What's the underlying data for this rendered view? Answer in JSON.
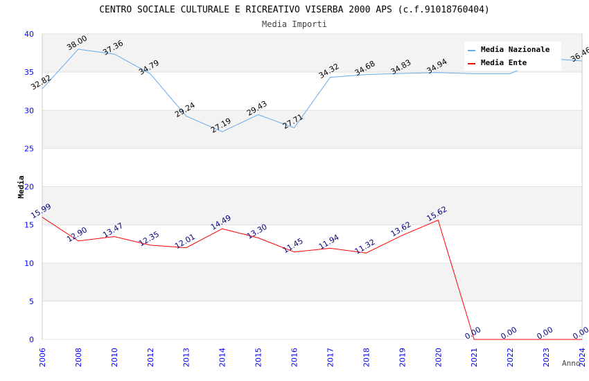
{
  "chart_data": {
    "type": "line",
    "title": "CENTRO SOCIALE CULTURALE E RICREATIVO VISERBA 2000 APS (c.f.91018760404)",
    "subtitle": "Media Importi",
    "xlabel": "Anno",
    "ylabel": "Media",
    "ylim": [
      0,
      40
    ],
    "yticks": [
      0,
      5,
      10,
      15,
      20,
      25,
      30,
      35,
      40
    ],
    "categories": [
      "2006",
      "2008",
      "2010",
      "2012",
      "2013",
      "2014",
      "2015",
      "2016",
      "2017",
      "2018",
      "2019",
      "2020",
      "2021",
      "2022",
      "2023",
      "2024"
    ],
    "legend_position": "top-right",
    "series": [
      {
        "name": "Media Nazionale",
        "color": "#66aaee",
        "label_color": "#000000",
        "values": [
          32.82,
          38.0,
          37.36,
          34.79,
          29.24,
          27.19,
          29.43,
          27.71,
          34.32,
          34.68,
          34.83,
          34.94,
          34.8,
          34.8,
          36.8,
          36.46
        ],
        "labels": [
          "32.82",
          "38.00",
          "37.36",
          "34.79",
          "29.24",
          "27.19",
          "29.43",
          "27.71",
          "34.32",
          "34.68",
          "34.83",
          "34.94",
          "",
          "",
          "",
          "36.46"
        ]
      },
      {
        "name": "Media Ente",
        "color": "#ff0000",
        "label_color": "#000080",
        "values": [
          15.99,
          12.9,
          13.47,
          12.35,
          12.01,
          14.49,
          13.3,
          11.45,
          11.94,
          11.32,
          13.62,
          15.62,
          0,
          0,
          0,
          0
        ],
        "labels": [
          "15.99",
          "12.90",
          "13.47",
          "12.35",
          "12.01",
          "14.49",
          "13.30",
          "11.45",
          "11.94",
          "11.32",
          "13.62",
          "15.62",
          "0.00",
          "0.00",
          "0.00",
          "0.00"
        ]
      }
    ]
  }
}
